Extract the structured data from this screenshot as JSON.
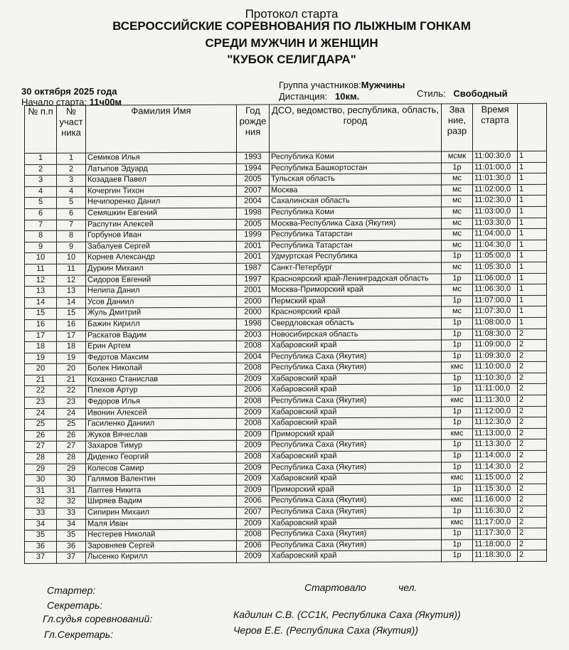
{
  "title": "Протокол старта",
  "heading_lines": [
    "ВСЕРОССИЙСКИЕ СОРЕВНОВАНИЯ ПО ЛЫЖНЫМ ГОНКАМ",
    "СРЕДИ МУЖЧИН И ЖЕНЩИН",
    "\"КУБОК СЕЛИГДАРА\""
  ],
  "meta": {
    "date": "30 октября 2025 года",
    "start_label": "Начало старта:",
    "start_value": "11ч00м",
    "group_label": "Группа участников:",
    "group_value": "Мужчины",
    "distance_label": "Дистанция:",
    "distance_value": "10км.",
    "style_label": "Стиль:",
    "style_value": "Свободный"
  },
  "columns": [
    "№ п.п",
    "№ участ ника",
    "Фамилия Имя",
    "Год рожде ния",
    "ДСО, ведомство, республика, область, город",
    "Зва ние, разр",
    "Время старта",
    ""
  ],
  "rows": [
    [
      "1",
      "1",
      "Семиков Илья",
      "1993",
      "Республика Коми",
      "мсмк",
      "11:00:30,0",
      "1"
    ],
    [
      "2",
      "2",
      "Латыпов Эдуард",
      "1994",
      "Республика Башкортостан",
      "1р",
      "11:01:00,0",
      "1"
    ],
    [
      "3",
      "3",
      "Козадаев Павел",
      "2005",
      "Тульская область",
      "мс",
      "11:01:30,0",
      "1"
    ],
    [
      "4",
      "4",
      "Кочергин Тихон",
      "2007",
      "Москва",
      "мс",
      "11:02:00,0",
      "1"
    ],
    [
      "5",
      "5",
      "Нечипоренко Данил",
      "2004",
      "Сахалинская область",
      "мс",
      "11:02:30,0",
      "1"
    ],
    [
      "6",
      "6",
      "Семяшкин Евгений",
      "1998",
      "Республика Коми",
      "мс",
      "11:03:00,0",
      "1"
    ],
    [
      "7",
      "7",
      "Распутин Алексей",
      "2005",
      "Москва-Республика Саха (Якутия)",
      "мс",
      "11:03:30,0",
      "1"
    ],
    [
      "8",
      "8",
      "Горбунов Иван",
      "1999",
      "Республика Татарстан",
      "мс",
      "11:04:00,0",
      "1"
    ],
    [
      "9",
      "9",
      "Забалуев Сергей",
      "2001",
      "Республика Татарстан",
      "мс",
      "11:04:30,0",
      "1"
    ],
    [
      "10",
      "10",
      "Корнев Александр",
      "2001",
      "Удмуртская Республика",
      "1р",
      "11:05:00,0",
      "1"
    ],
    [
      "11",
      "11",
      "Дуркин Михаил",
      "1987",
      "Санкт-Петербург",
      "мс",
      "11:05:30,0",
      "1"
    ],
    [
      "12",
      "12",
      "Сидоров Евгений",
      "1997",
      "Красноярский край-Ленинградская область",
      "1р",
      "11:06:00,0",
      "1"
    ],
    [
      "13",
      "13",
      "Нелипа Данил",
      "2001",
      "Москва-Приморский край",
      "мс",
      "11:06:30,0",
      "1"
    ],
    [
      "14",
      "14",
      "Усов Даниил",
      "2000",
      "Пермский край",
      "1р",
      "11:07:00,0",
      "1"
    ],
    [
      "15",
      "15",
      "Жуль Дмитрий",
      "2000",
      "Красноярский край",
      "мс",
      "11:07:30,0",
      "1"
    ],
    [
      "16",
      "16",
      "Бажин Кирилл",
      "1998",
      "Свердловская область",
      "1р",
      "11:08:00,0",
      "1"
    ],
    [
      "17",
      "17",
      "Раскатов Вадим",
      "2003",
      "Новосибирская область",
      "1р",
      "11:08:30,0",
      "2"
    ],
    [
      "18",
      "18",
      "Ерин Артем",
      "2008",
      "Хабаровский край",
      "1р",
      "11:09:00,0",
      "2"
    ],
    [
      "19",
      "19",
      "Федотов Максим",
      "2004",
      "Республика Саха (Якутия)",
      "1р",
      "11:09:30,0",
      "2"
    ],
    [
      "20",
      "20",
      "Болек Николай",
      "2008",
      "Республика Саха (Якутия)",
      "кмс",
      "11:10:00,0",
      "2"
    ],
    [
      "21",
      "21",
      "Коханко Станислав",
      "2009",
      "Хабаровский край",
      "1р",
      "11:10:30,0",
      "2"
    ],
    [
      "22",
      "22",
      "Плехов Артур",
      "2006",
      "Хабаровский край",
      "1р",
      "11:11:00,0",
      "2"
    ],
    [
      "23",
      "23",
      "Федоров Илья",
      "2008",
      "Республика Саха (Якутия)",
      "кмс",
      "11:11:30,0",
      "2"
    ],
    [
      "24",
      "24",
      "Ивонин Алексей",
      "2009",
      "Хабаровский край",
      "1р",
      "11:12:00,0",
      "2"
    ],
    [
      "25",
      "25",
      "Гасиленко Даниил",
      "2008",
      "Хабаровский край",
      "1р",
      "11:12:30,0",
      "2"
    ],
    [
      "26",
      "26",
      "Жуков Вячеслав",
      "2009",
      "Приморский край",
      "кмс",
      "11:13:00,0",
      "2"
    ],
    [
      "27",
      "27",
      "Захаров Тимур",
      "2009",
      "Республика Саха (Якутия)",
      "1р",
      "11:13:30,0",
      "2"
    ],
    [
      "28",
      "28",
      "Диденко Георгий",
      "2008",
      "Хабаровский край",
      "1р",
      "11:14:00,0",
      "2"
    ],
    [
      "29",
      "29",
      "Колесов Самир",
      "2009",
      "Республика Саха (Якутия)",
      "1р",
      "11:14:30,0",
      "2"
    ],
    [
      "30",
      "30",
      "Галямов Валентин",
      "2009",
      "Хабаровский край",
      "кмс",
      "11:15:00,0",
      "2"
    ],
    [
      "31",
      "31",
      "Лаптев Никита",
      "2009",
      "Приморский край",
      "1р",
      "11:15:30,0",
      "2"
    ],
    [
      "32",
      "32",
      "Ширяев Вадим",
      "2006",
      "Республика Саха (Якутия)",
      "кмс",
      "11:16:00,0",
      "2"
    ],
    [
      "33",
      "33",
      "Сипирин Михаил",
      "2007",
      "Республика Саха (Якутия)",
      "1р",
      "11:16:30,0",
      "2"
    ],
    [
      "34",
      "34",
      "Маля Иван",
      "2009",
      "Хабаровский край",
      "кмс",
      "11:17:00,0",
      "2"
    ],
    [
      "35",
      "35",
      "Нестерев Николай",
      "2008",
      "Республика Саха (Якутия)",
      "1р",
      "11:17:30,0",
      "2"
    ],
    [
      "36",
      "36",
      "Заровняев Сергей",
      "2006",
      "Республика Саха (Якутия)",
      "1р",
      "11:18:00,0",
      "2"
    ],
    [
      "37",
      "37",
      "Лысенко Кирилл",
      "2009",
      "Хабаровский край",
      "1р",
      "11:18:30,0",
      "2"
    ]
  ],
  "footer": {
    "starter": "Стартер:",
    "started": "Стартовало",
    "people": "чел.",
    "secretary": "Секретарь:",
    "chief_judge_label": "Гл.судья соревнований:",
    "chief_judge": "Кадилин С.В. (СС1К, Республика Саха (Якутия))",
    "chief_secretary_label": "Гл.Секретарь:",
    "chief_secretary": "Черов Е.Е. (Республика Саха (Якутия))"
  }
}
